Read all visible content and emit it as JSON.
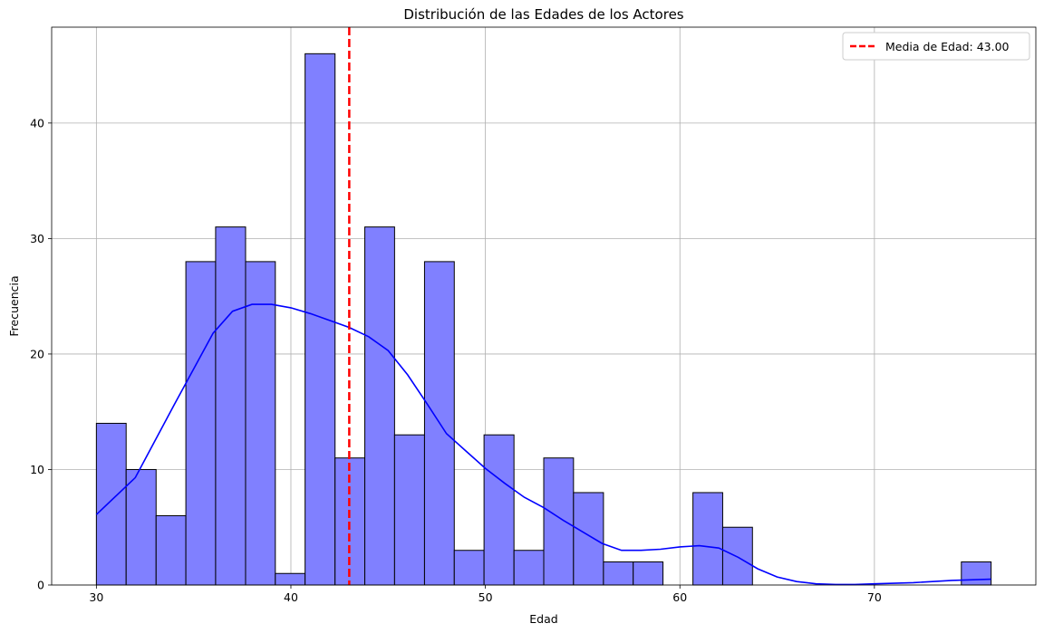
{
  "chart_data": {
    "type": "bar",
    "title": "Distribución de las Edades de los Actores",
    "xlabel": "Edad",
    "ylabel": "Frecuencia",
    "xlim": [
      27.7,
      78.3
    ],
    "ylim": [
      0,
      48.3
    ],
    "xticks": [
      30,
      40,
      50,
      60,
      70
    ],
    "yticks": [
      0,
      10,
      20,
      30,
      40
    ],
    "grid": true,
    "bin_edges": [
      30,
      31.53,
      33.07,
      34.6,
      36.13,
      37.67,
      39.2,
      40.73,
      42.27,
      43.8,
      45.33,
      46.87,
      48.4,
      49.93,
      51.47,
      53,
      54.53,
      56.07,
      57.6,
      59.13,
      60.67,
      62.2,
      63.73,
      65.27,
      66.8,
      68.33,
      69.87,
      71.4,
      72.93,
      74.47,
      76
    ],
    "counts": [
      14,
      10,
      6,
      28,
      31,
      28,
      1,
      46,
      11,
      31,
      13,
      28,
      3,
      13,
      3,
      11,
      8,
      2,
      2,
      0,
      8,
      5,
      0,
      0,
      0,
      0,
      0,
      0,
      0,
      2
    ],
    "bar_color": "#8080ff",
    "bar_edge_color": "#000000",
    "kde": {
      "color": "#0000ff",
      "x": [
        30,
        32,
        34,
        36,
        37,
        38,
        39,
        40,
        41,
        42,
        43,
        44,
        45,
        46,
        47,
        48,
        49,
        50,
        51,
        52,
        53,
        54,
        55,
        56,
        57,
        58,
        59,
        60,
        61,
        62,
        63,
        64,
        65,
        66,
        67,
        68,
        69,
        70,
        72,
        74,
        76
      ],
      "y": [
        6.1,
        9.3,
        15.6,
        21.8,
        23.7,
        24.3,
        24.3,
        24.0,
        23.5,
        22.9,
        22.3,
        21.5,
        20.3,
        18.2,
        15.7,
        13.1,
        11.6,
        10.1,
        8.8,
        7.6,
        6.7,
        5.6,
        4.6,
        3.6,
        3.0,
        3.0,
        3.1,
        3.3,
        3.4,
        3.2,
        2.4,
        1.4,
        0.7,
        0.3,
        0.1,
        0.05,
        0.05,
        0.1,
        0.2,
        0.4,
        0.5
      ]
    },
    "mean_line": {
      "x": 43.0,
      "color": "#ff0000",
      "label": "Media de Edad: 43.00"
    },
    "legend": {
      "placement": "top-right",
      "entries": [
        "Media de Edad: 43.00"
      ]
    }
  }
}
